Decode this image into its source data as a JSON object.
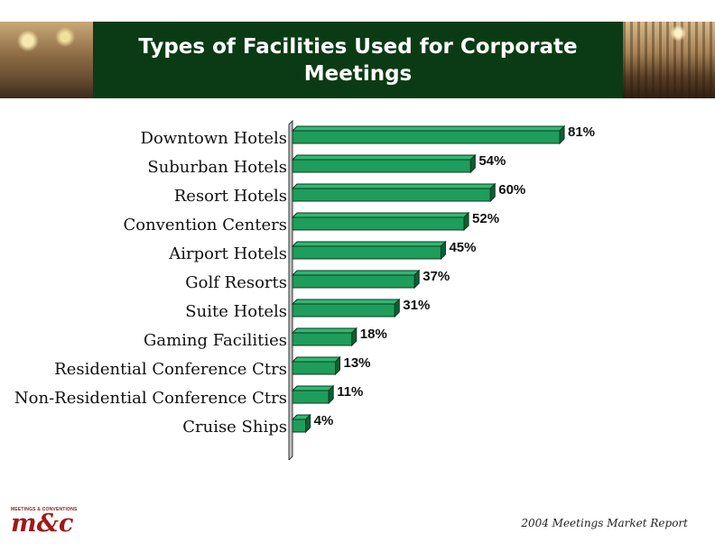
{
  "header": {
    "title": "Types of Facilities Used for Corporate Meetings"
  },
  "chart_data": {
    "type": "bar",
    "orientation": "horizontal",
    "title": "Types of Facilities Used for Corporate Meetings",
    "categories": [
      "Downtown Hotels",
      "Suburban Hotels",
      "Resort Hotels",
      "Convention Centers",
      "Airport Hotels",
      "Golf Resorts",
      "Suite Hotels",
      "Gaming Facilities",
      "Residential Conference Ctrs",
      "Non-Residential Conference Ctrs",
      "Cruise Ships"
    ],
    "values": [
      81,
      54,
      60,
      52,
      45,
      37,
      31,
      18,
      13,
      11,
      4
    ],
    "value_labels": [
      "81%",
      "54%",
      "60%",
      "52%",
      "45%",
      "37%",
      "31%",
      "18%",
      "13%",
      "11%",
      "4%"
    ],
    "unit": "%",
    "xlim": [
      0,
      81
    ],
    "bar_color": "#1f9d5b",
    "grid": false,
    "legend": "none"
  },
  "logo": {
    "small_text": "MEETINGS & CONVENTIONS",
    "big_text": "m&c"
  },
  "footer": {
    "source": "2004 Meetings Market Report"
  },
  "colors": {
    "title_band": "#0b3b14",
    "bar_front": "#1f9d5b",
    "bar_top": "#2fb872",
    "bar_side": "#0e5f33"
  }
}
